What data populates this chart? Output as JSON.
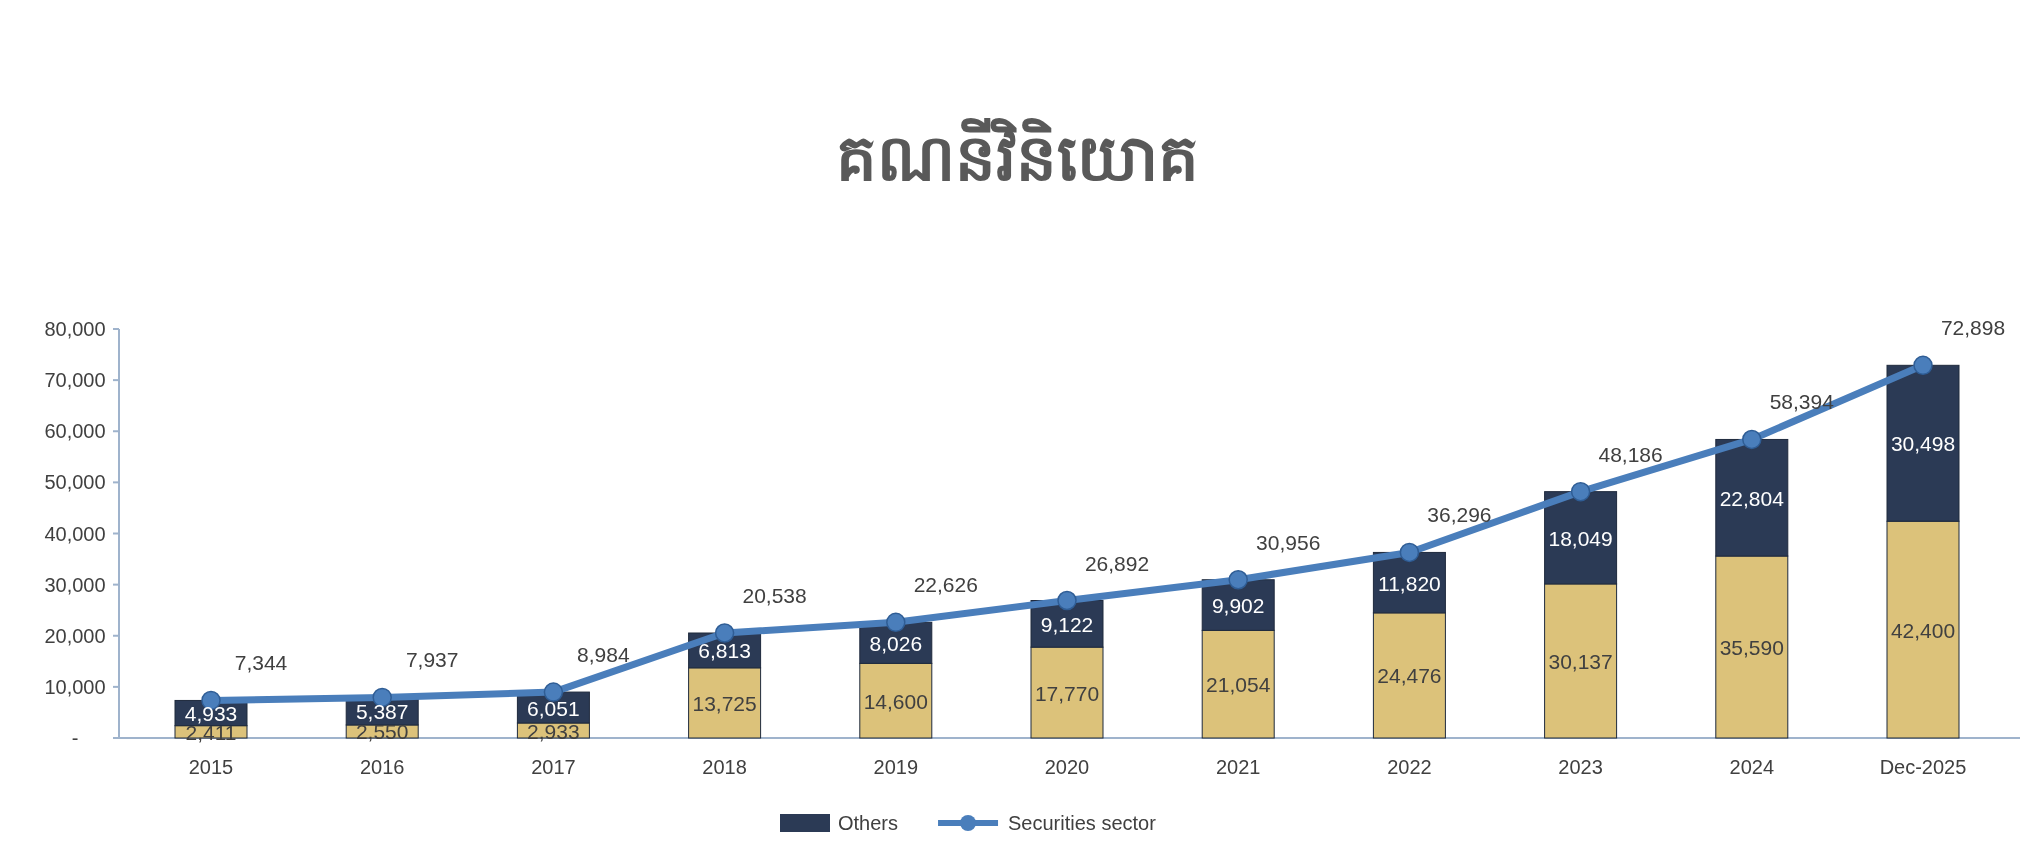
{
  "chart_data": {
    "type": "bar",
    "title": "គណនីវិនិយោគ",
    "stacked": true,
    "categories": [
      "2015",
      "2016",
      "2017",
      "2018",
      "2019",
      "2020",
      "2021",
      "2022",
      "2023",
      "2024",
      "Dec-2025"
    ],
    "ylim": [
      0,
      80000
    ],
    "yticks": [
      {
        "value": 0,
        "label": "-"
      },
      {
        "value": 10000,
        "label": "10,000"
      },
      {
        "value": 20000,
        "label": "20,000"
      },
      {
        "value": 30000,
        "label": "30,000"
      },
      {
        "value": 40000,
        "label": "40,000"
      },
      {
        "value": 50000,
        "label": "50,000"
      },
      {
        "value": 60000,
        "label": "60,000"
      },
      {
        "value": 70000,
        "label": "70,000"
      },
      {
        "value": 80000,
        "label": "80,000"
      }
    ],
    "grid": false,
    "legend": "bottom",
    "series": [
      {
        "color": "#dcc27a",
        "values": [
          2411,
          2550,
          2933,
          13725,
          14600,
          17770,
          21054,
          24476,
          30137,
          35590,
          42400
        ],
        "value_labels": [
          "2,411",
          "2,550",
          "2,933",
          "13,725",
          "14,600",
          "17,770",
          "21,054",
          "24,476",
          "30,137",
          "35,590",
          "42,400"
        ]
      },
      {
        "name": "Others",
        "color": "#2b3a55",
        "values": [
          4933,
          5387,
          6051,
          6813,
          8026,
          9122,
          9902,
          11820,
          18049,
          22804,
          30498
        ],
        "value_labels": [
          "4,933",
          "5,387",
          "6,051",
          "6,813",
          "8,026",
          "9,122",
          "9,902",
          "11,820",
          "18,049",
          "22,804",
          "30,498"
        ]
      },
      {
        "name": "Securities sector",
        "type": "line",
        "color": "#4a7ebb",
        "marker": "circle",
        "values": [
          7344,
          7937,
          8984,
          20538,
          22626,
          26892,
          30956,
          36296,
          48186,
          58394,
          72898
        ],
        "value_labels": [
          "7,344",
          "7,937",
          "8,984",
          "20,538",
          "22,626",
          "26,892",
          "30,956",
          "36,296",
          "48,186",
          "58,394",
          "72,898"
        ]
      }
    ]
  }
}
